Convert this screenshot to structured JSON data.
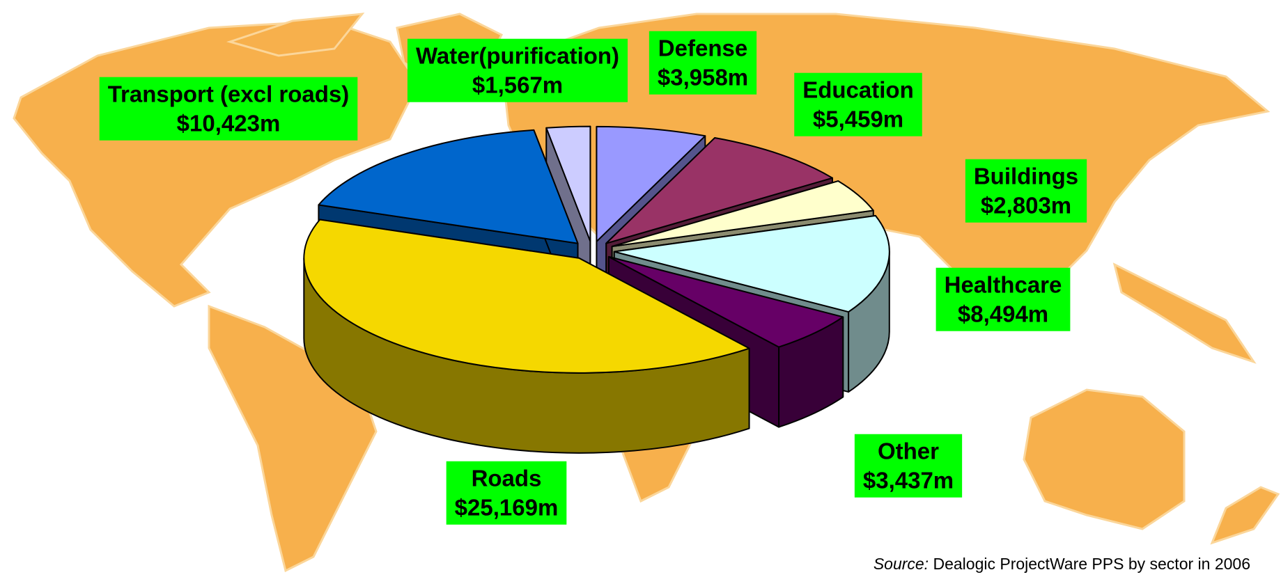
{
  "chart_data": {
    "type": "pie",
    "categories": [
      "Defense",
      "Education",
      "Buildings",
      "Healthcare",
      "Other",
      "Roads",
      "Transport (excl roads)",
      "Water(purification)"
    ],
    "values": [
      3958,
      5459,
      2803,
      8494,
      3437,
      25169,
      10423,
      1567
    ],
    "value_labels": [
      "$3,958m",
      "$5,459m",
      "$2,803m",
      "$8,494m",
      "$3,437m",
      "$25,169m",
      "$10,423m",
      "$1,567m"
    ],
    "colors": [
      "#9999ff",
      "#993366",
      "#ffffcc",
      "#ccffff",
      "#660066",
      "#f5d800",
      "#0066cc",
      "#ccccff"
    ],
    "label_color": "#00ff00",
    "source_label": "Source:",
    "source": "Dealogic ProjectWare PPS by sector in 2006"
  }
}
